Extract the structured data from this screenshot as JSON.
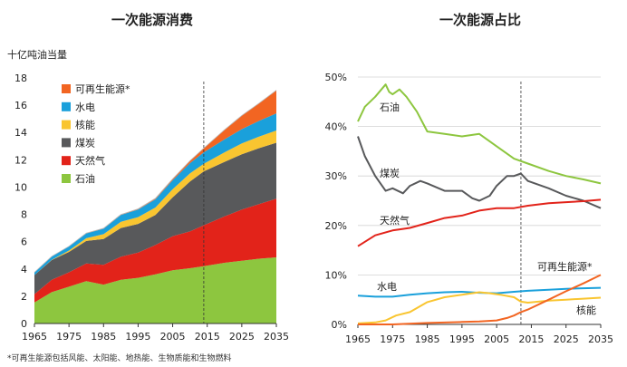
{
  "footnote": "*可再生能源包括风能、太阳能、地热能、生物质能和生物燃料",
  "chart_data": [
    {
      "type": "area",
      "stacked": true,
      "title": "一次能源消费",
      "ylabel": "十亿吨油当量",
      "xlim": [
        1965,
        2035
      ],
      "ylim": [
        0,
        18
      ],
      "xticks": [
        1965,
        1975,
        1985,
        1995,
        2005,
        2015,
        2025,
        2035
      ],
      "yticks": [
        0,
        2,
        4,
        6,
        8,
        10,
        12,
        14,
        16,
        18
      ],
      "xtick_labels": [
        "1965",
        "1975",
        "1985",
        "1995",
        "2005",
        "2015",
        "2025",
        "2035"
      ],
      "ytick_labels": [
        "0",
        "2",
        "4",
        "6",
        "8",
        "10",
        "12",
        "14",
        "16",
        "18"
      ],
      "divider_year": 2014,
      "legend_position": "top-left",
      "x": [
        1965,
        1970,
        1975,
        1980,
        1985,
        1990,
        1995,
        2000,
        2005,
        2010,
        2014,
        2020,
        2025,
        2030,
        2035
      ],
      "series": [
        {
          "name": "石油",
          "color": "#8dc63f",
          "values": [
            1.55,
            2.3,
            2.7,
            3.1,
            2.85,
            3.2,
            3.35,
            3.6,
            3.9,
            4.05,
            4.2,
            4.45,
            4.6,
            4.75,
            4.85
          ]
        },
        {
          "name": "天然气",
          "color": "#e2231a",
          "values": [
            0.6,
            0.9,
            1.05,
            1.3,
            1.45,
            1.7,
            1.85,
            2.15,
            2.5,
            2.7,
            3.0,
            3.4,
            3.75,
            4.0,
            4.3
          ]
        },
        {
          "name": "煤炭",
          "color": "#58595b",
          "values": [
            1.4,
            1.45,
            1.5,
            1.65,
            1.9,
            2.1,
            2.1,
            2.2,
            2.85,
            3.65,
            3.95,
            4.0,
            4.05,
            4.1,
            4.1
          ]
        },
        {
          "name": "核能",
          "color": "#f9c530",
          "values": [
            0.0,
            0.02,
            0.1,
            0.2,
            0.35,
            0.45,
            0.5,
            0.55,
            0.6,
            0.6,
            0.55,
            0.7,
            0.8,
            0.85,
            0.9
          ]
        },
        {
          "name": "水电",
          "color": "#1aa0db",
          "values": [
            0.2,
            0.25,
            0.3,
            0.35,
            0.4,
            0.5,
            0.55,
            0.6,
            0.65,
            0.75,
            0.85,
            0.95,
            1.05,
            1.15,
            1.25
          ]
        },
        {
          "name": "可再生能源*",
          "color": "#f26522",
          "values": [
            0.0,
            0.0,
            0.01,
            0.02,
            0.03,
            0.04,
            0.05,
            0.07,
            0.1,
            0.17,
            0.3,
            0.7,
            1.0,
            1.3,
            1.7
          ]
        }
      ]
    },
    {
      "type": "line",
      "title": "一次能源占比",
      "xlim": [
        1965,
        2035
      ],
      "ylim": [
        0,
        0.5
      ],
      "xticks": [
        1965,
        1975,
        1985,
        1995,
        2005,
        2015,
        2025,
        2035
      ],
      "yticks": [
        0,
        0.1,
        0.2,
        0.3,
        0.4,
        0.5
      ],
      "xtick_labels": [
        "1965",
        "1975",
        "1985",
        "1995",
        "2005",
        "2015",
        "2025",
        "2035"
      ],
      "ytick_labels": [
        "0%",
        "10%",
        "20%",
        "30%",
        "40%",
        "50%"
      ],
      "divider_year": 2012,
      "series": [
        {
          "name": "石油",
          "color": "#8dc63f",
          "x": [
            1965,
            1967,
            1970,
            1973,
            1974,
            1975,
            1977,
            1979,
            1982,
            1985,
            1990,
            1995,
            2000,
            2005,
            2010,
            2014,
            2020,
            2025,
            2030,
            2035
          ],
          "values": [
            0.41,
            0.44,
            0.46,
            0.485,
            0.47,
            0.465,
            0.475,
            0.46,
            0.43,
            0.39,
            0.385,
            0.38,
            0.385,
            0.36,
            0.335,
            0.325,
            0.31,
            0.3,
            0.293,
            0.285
          ]
        },
        {
          "name": "煤炭",
          "color": "#58595b",
          "x": [
            1965,
            1967,
            1970,
            1973,
            1975,
            1978,
            1980,
            1983,
            1985,
            1990,
            1995,
            1998,
            2000,
            2003,
            2005,
            2008,
            2010,
            2012,
            2014,
            2020,
            2025,
            2030,
            2035
          ],
          "values": [
            0.38,
            0.34,
            0.3,
            0.27,
            0.275,
            0.265,
            0.28,
            0.29,
            0.285,
            0.27,
            0.27,
            0.255,
            0.25,
            0.26,
            0.28,
            0.3,
            0.3,
            0.305,
            0.29,
            0.275,
            0.26,
            0.25,
            0.235
          ]
        },
        {
          "name": "天然气",
          "color": "#e2231a",
          "x": [
            1965,
            1970,
            1975,
            1980,
            1985,
            1990,
            1995,
            2000,
            2005,
            2010,
            2014,
            2020,
            2025,
            2030,
            2035
          ],
          "values": [
            0.158,
            0.18,
            0.19,
            0.195,
            0.205,
            0.215,
            0.22,
            0.23,
            0.235,
            0.235,
            0.24,
            0.245,
            0.247,
            0.249,
            0.252
          ]
        },
        {
          "name": "水电",
          "color": "#1aa0db",
          "x": [
            1965,
            1970,
            1975,
            1980,
            1985,
            1990,
            1995,
            2000,
            2005,
            2010,
            2014,
            2020,
            2025,
            2030,
            2035
          ],
          "values": [
            0.058,
            0.056,
            0.056,
            0.06,
            0.063,
            0.065,
            0.066,
            0.064,
            0.063,
            0.066,
            0.068,
            0.07,
            0.072,
            0.073,
            0.074
          ]
        },
        {
          "name": "核能",
          "color": "#f9c530",
          "x": [
            1965,
            1970,
            1973,
            1976,
            1980,
            1985,
            1990,
            1995,
            2000,
            2003,
            2006,
            2010,
            2012,
            2014,
            2020,
            2025,
            2030,
            2035
          ],
          "values": [
            0.002,
            0.004,
            0.008,
            0.018,
            0.025,
            0.045,
            0.055,
            0.06,
            0.065,
            0.063,
            0.06,
            0.055,
            0.046,
            0.044,
            0.048,
            0.05,
            0.052,
            0.054
          ]
        },
        {
          "name": "可再生能源*",
          "color": "#f26522",
          "x": [
            1965,
            1975,
            1985,
            1995,
            2000,
            2005,
            2008,
            2010,
            2012,
            2014,
            2020,
            2025,
            2030,
            2035
          ],
          "values": [
            0.0,
            0.0,
            0.003,
            0.005,
            0.006,
            0.008,
            0.013,
            0.018,
            0.025,
            0.03,
            0.05,
            0.067,
            0.083,
            0.1
          ]
        }
      ]
    }
  ]
}
